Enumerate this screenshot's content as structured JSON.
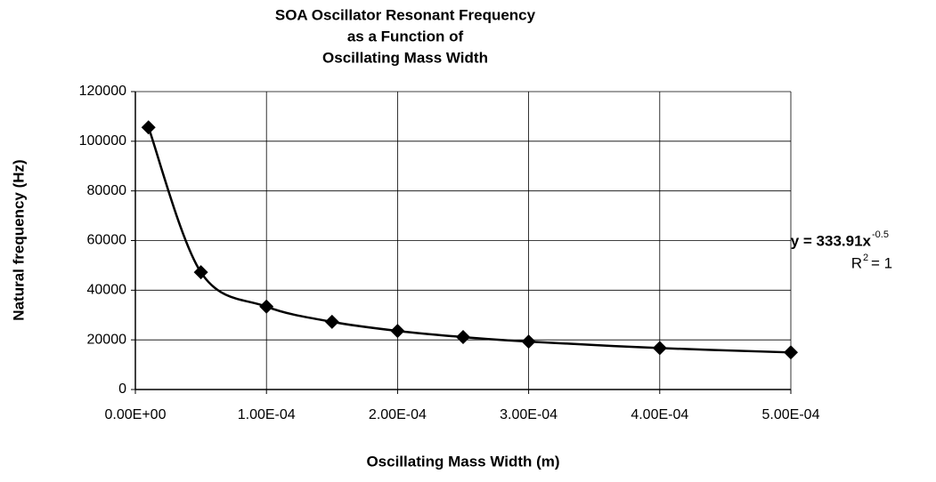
{
  "chart_data": {
    "type": "scatter",
    "title": [
      "SOA Oscillator Resonant Frequency",
      "as a Function of",
      "Oscillating Mass Width"
    ],
    "x_label": "Oscillating Mass Width (m)",
    "y_label": "Natural frequency (Hz)",
    "x": [
      1e-05,
      5e-05,
      0.0001,
      0.00015,
      0.0002,
      0.00025,
      0.0003,
      0.0004,
      0.0005
    ],
    "values": [
      105590,
      47222,
      33391,
      27264,
      23611,
      21118,
      19278,
      16696,
      14933
    ],
    "color": "#000000",
    "trendline": true,
    "annotation": {
      "equation": "y = 333.91x",
      "exponent": "-0.5",
      "r": "R",
      "r_power": "2",
      "r_value": "= 1"
    },
    "xlim": [
      0,
      0.0005
    ],
    "xticks": [
      {
        "value": 0,
        "label": "0.00E+00"
      },
      {
        "value": 0.0001,
        "label": "1.00E-04"
      },
      {
        "value": 0.0002,
        "label": "2.00E-04"
      },
      {
        "value": 0.0003,
        "label": "3.00E-04"
      },
      {
        "value": 0.0004,
        "label": "4.00E-04"
      },
      {
        "value": 0.0005,
        "label": "5.00E-04"
      }
    ],
    "ylim": [
      0,
      120000
    ],
    "yticks": [
      0,
      20000,
      40000,
      60000,
      80000,
      100000,
      120000
    ],
    "grid": true
  }
}
